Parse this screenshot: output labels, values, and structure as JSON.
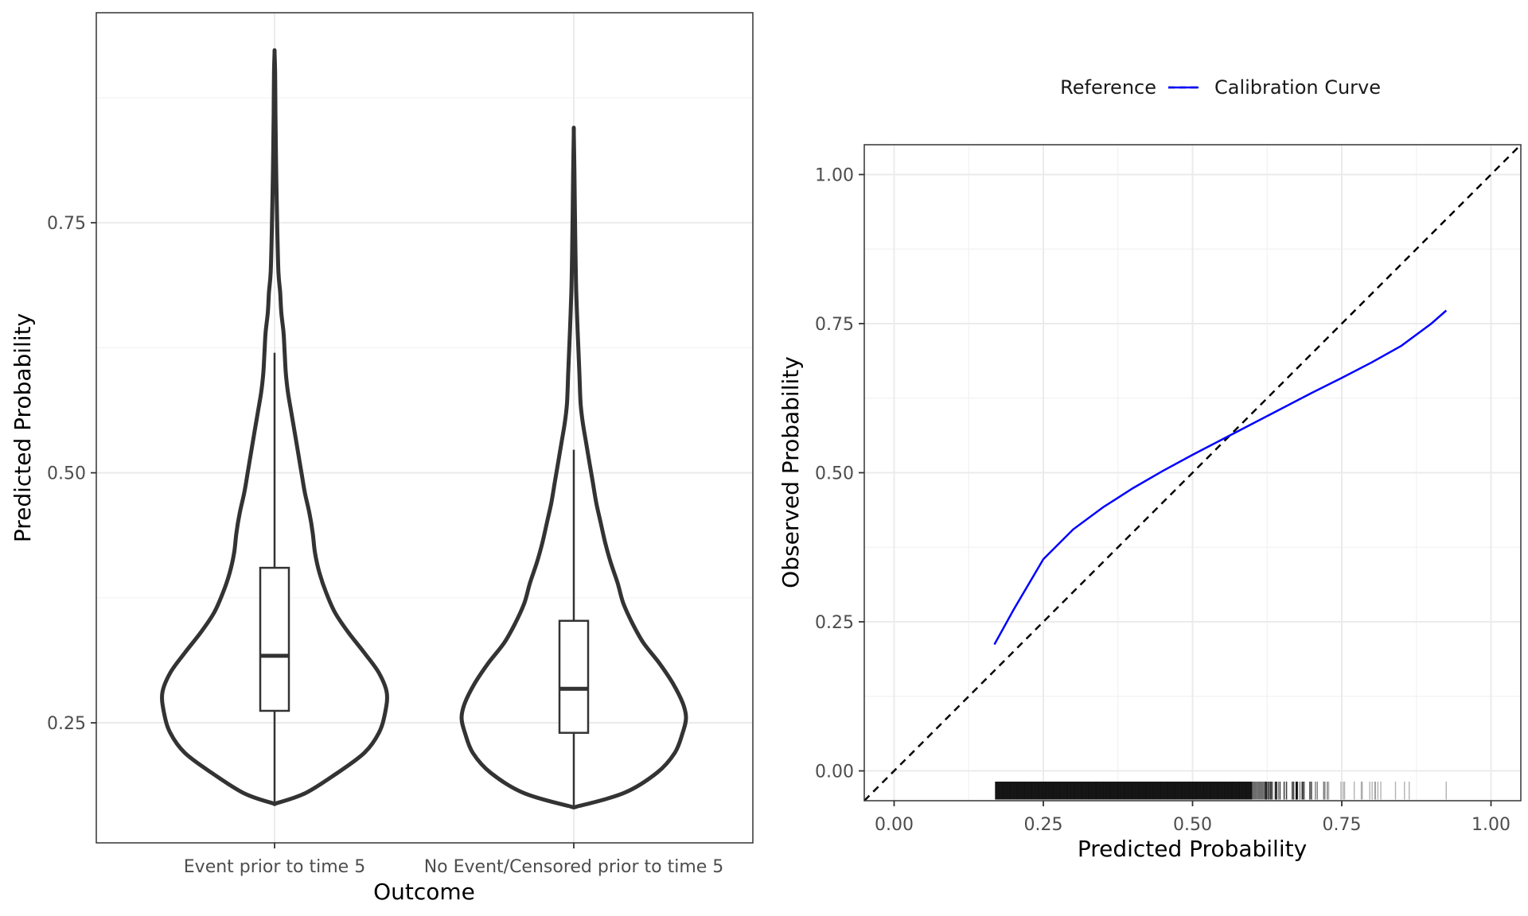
{
  "chart_data": [
    {
      "type": "violin",
      "xlabel": "Outcome",
      "ylabel": "Predicted Probability",
      "categories": [
        "Event prior to time 5",
        "No Event/Censored prior to time 5"
      ],
      "y_ticks": [
        0.25,
        0.5,
        0.75
      ],
      "y_tick_labels": [
        "0.25",
        "0.50",
        "0.75"
      ],
      "ylim": [
        0.13,
        0.96
      ],
      "grid": true,
      "boxplots": [
        {
          "category": "Event prior to time 5",
          "whisker_low": 0.17,
          "q1": 0.262,
          "median": 0.317,
          "q3": 0.405,
          "whisker_high": 0.62
        },
        {
          "category": "No Event/Censored prior to time 5",
          "whisker_low": 0.167,
          "q1": 0.24,
          "median": 0.284,
          "q3": 0.352,
          "whisker_high": 0.523
        }
      ],
      "violins": [
        {
          "category": "Event prior to time 5",
          "min": 0.17,
          "max": 0.92,
          "profile": [
            [
              0.17,
              0.028
            ],
            [
              0.18,
              0.28
            ],
            [
              0.2,
              0.56
            ],
            [
              0.22,
              0.8
            ],
            [
              0.24,
              0.93
            ],
            [
              0.26,
              0.985
            ],
            [
              0.28,
              1.0
            ],
            [
              0.3,
              0.93
            ],
            [
              0.32,
              0.8
            ],
            [
              0.34,
              0.66
            ],
            [
              0.36,
              0.54
            ],
            [
              0.38,
              0.46
            ],
            [
              0.4,
              0.4
            ],
            [
              0.42,
              0.36
            ],
            [
              0.44,
              0.34
            ],
            [
              0.46,
              0.31
            ],
            [
              0.48,
              0.27
            ],
            [
              0.5,
              0.24
            ],
            [
              0.52,
              0.21
            ],
            [
              0.54,
              0.18
            ],
            [
              0.56,
              0.15
            ],
            [
              0.58,
              0.12
            ],
            [
              0.6,
              0.1
            ],
            [
              0.62,
              0.09
            ],
            [
              0.64,
              0.08
            ],
            [
              0.66,
              0.06
            ],
            [
              0.68,
              0.05
            ],
            [
              0.7,
              0.035
            ],
            [
              0.74,
              0.025
            ],
            [
              0.78,
              0.018
            ],
            [
              0.82,
              0.012
            ],
            [
              0.86,
              0.008
            ],
            [
              0.9,
              0.005
            ],
            [
              0.92,
              0.0
            ]
          ]
        },
        {
          "category": "No Event/Censored prior to time 5",
          "min": 0.167,
          "max": 0.84,
          "profile": [
            [
              0.167,
              0.05
            ],
            [
              0.18,
              0.45
            ],
            [
              0.2,
              0.74
            ],
            [
              0.22,
              0.9
            ],
            [
              0.24,
              0.97
            ],
            [
              0.255,
              1.0
            ],
            [
              0.27,
              0.97
            ],
            [
              0.29,
              0.88
            ],
            [
              0.31,
              0.76
            ],
            [
              0.33,
              0.62
            ],
            [
              0.35,
              0.52
            ],
            [
              0.37,
              0.44
            ],
            [
              0.39,
              0.39
            ],
            [
              0.41,
              0.33
            ],
            [
              0.43,
              0.28
            ],
            [
              0.45,
              0.24
            ],
            [
              0.47,
              0.2
            ],
            [
              0.49,
              0.17
            ],
            [
              0.51,
              0.14
            ],
            [
              0.53,
              0.11
            ],
            [
              0.55,
              0.08
            ],
            [
              0.57,
              0.06
            ],
            [
              0.6,
              0.05
            ],
            [
              0.64,
              0.035
            ],
            [
              0.68,
              0.022
            ],
            [
              0.72,
              0.015
            ],
            [
              0.76,
              0.01
            ],
            [
              0.8,
              0.006
            ],
            [
              0.84,
              0.0
            ]
          ]
        }
      ]
    },
    {
      "type": "line",
      "xlabel": "Predicted Probability",
      "ylabel": "Observed Probability",
      "xlim": [
        -0.05,
        1.05
      ],
      "ylim": [
        -0.05,
        1.05
      ],
      "x_ticks": [
        0,
        0.25,
        0.5,
        0.75,
        1
      ],
      "x_tick_labels": [
        "0.00",
        "0.25",
        "0.50",
        "0.75",
        "1.00"
      ],
      "y_ticks": [
        0,
        0.25,
        0.5,
        0.75,
        1
      ],
      "y_tick_labels": [
        "0.00",
        "0.25",
        "0.50",
        "0.75",
        "1.00"
      ],
      "grid": true,
      "legend": {
        "position": "top",
        "entries": [
          "Reference",
          "Calibration Curve"
        ]
      },
      "series": [
        {
          "name": "Reference",
          "style": "dashed",
          "color": "#000000",
          "x": [
            -0.05,
            1.05
          ],
          "y": [
            -0.05,
            1.05
          ]
        },
        {
          "name": "Calibration Curve",
          "style": "solid",
          "color": "#0000ff",
          "x": [
            0.168,
            0.2,
            0.25,
            0.3,
            0.35,
            0.4,
            0.45,
            0.5,
            0.55,
            0.6,
            0.65,
            0.7,
            0.75,
            0.8,
            0.85,
            0.9,
            0.925
          ],
          "y": [
            0.212,
            0.27,
            0.355,
            0.405,
            0.442,
            0.474,
            0.503,
            0.53,
            0.556,
            0.582,
            0.608,
            0.634,
            0.659,
            0.685,
            0.713,
            0.75,
            0.772
          ]
        }
      ],
      "rug": {
        "min": 0.17,
        "max": 0.925,
        "color": "#000000"
      }
    }
  ]
}
